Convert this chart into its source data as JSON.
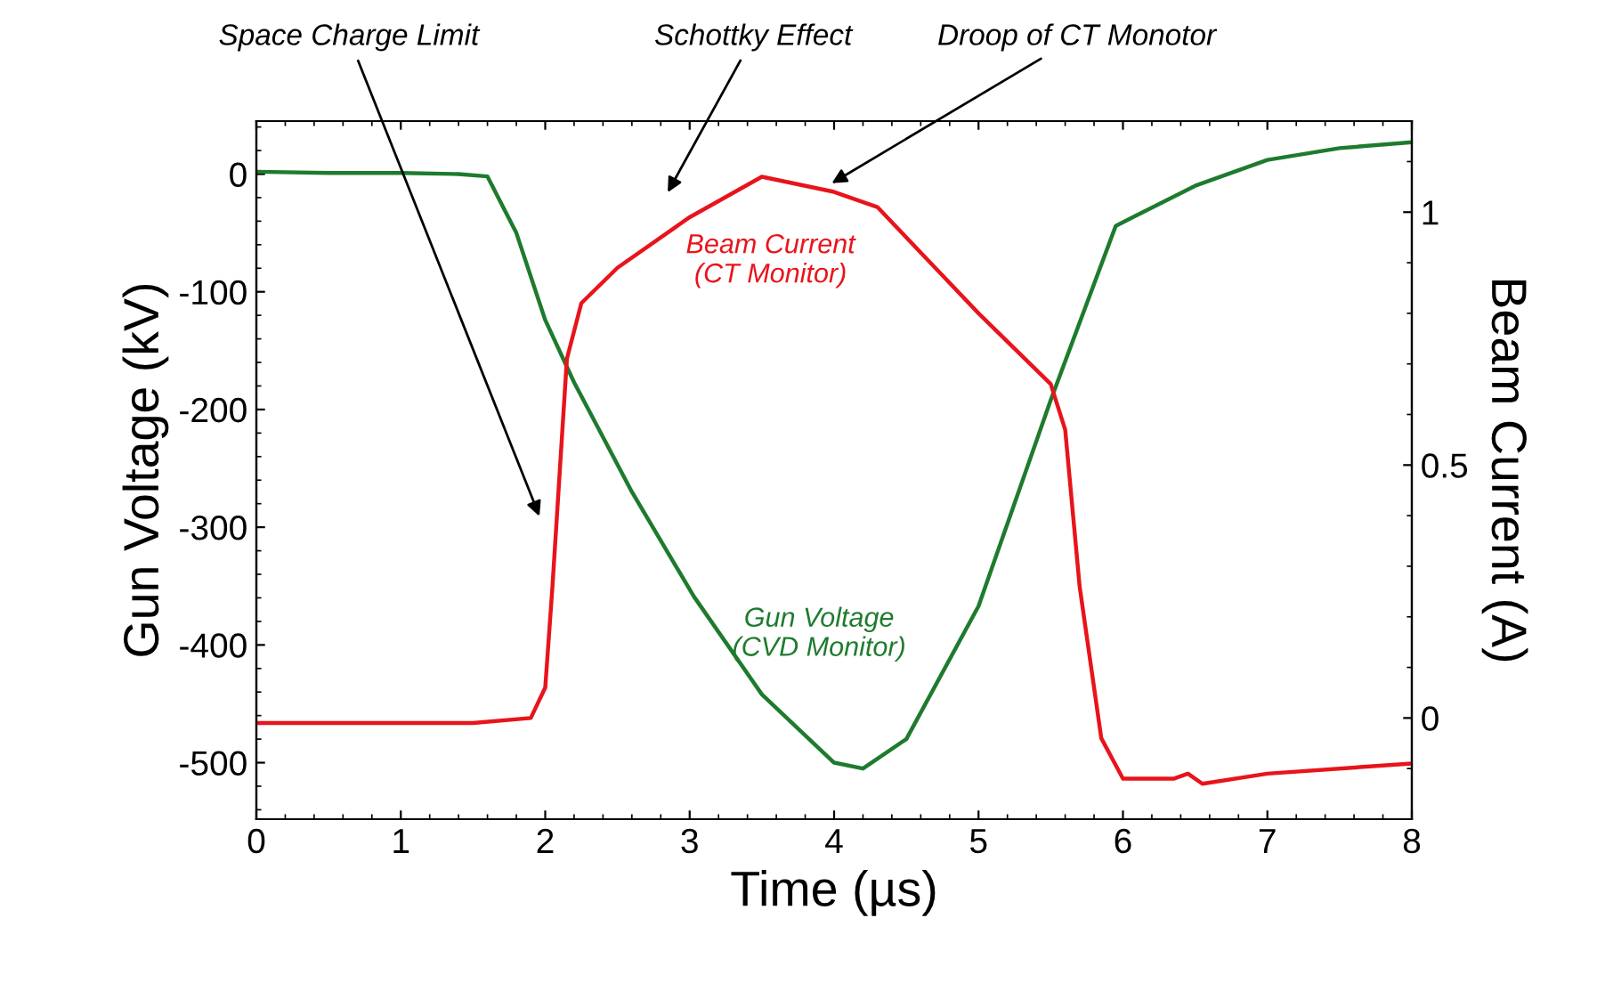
{
  "chart_data": {
    "type": "line",
    "xlabel": "Time (µs)",
    "ylabel": "Gun Voltage (kV)",
    "y2label": "Beam Current (A)",
    "xlim": [
      0,
      8
    ],
    "xticks": [
      0,
      1,
      2,
      3,
      4,
      5,
      6,
      7,
      8
    ],
    "ylim": [
      -548,
      45
    ],
    "yticks": [
      0,
      -100,
      -200,
      -300,
      -400,
      -500
    ],
    "y2lim": [
      -0.2,
      1.18
    ],
    "y2ticks": [
      0,
      0.5,
      1
    ],
    "grid": false,
    "legend": false,
    "series": [
      {
        "name": "Gun Voltage\n(CVD Monitor)",
        "color": "#1e7b2e",
        "x": [
          0,
          0.5,
          1,
          1.4,
          1.6,
          1.8,
          2.0,
          2.2,
          2.6,
          3.03,
          3.5,
          4.0,
          4.2,
          4.5,
          5.0,
          5.5,
          5.95,
          6.5,
          7.0,
          7.5,
          8.0
        ],
        "values": [
          2,
          1,
          1,
          0,
          -2,
          -50,
          -124,
          -177,
          -270,
          -359,
          -442,
          -500,
          -505,
          -480,
          -367,
          -192,
          -44,
          -10,
          12,
          22,
          27
        ]
      },
      {
        "name": "Beam Current\n(CT Monitor)",
        "color": "#e8141b",
        "axis": "y2",
        "x": [
          0,
          0.5,
          1,
          1.5,
          1.9,
          2.0,
          2.05,
          2.15,
          2.25,
          2.5,
          3.0,
          3.5,
          4.0,
          4.3,
          4.7,
          5.0,
          5.5,
          5.6,
          5.7,
          5.85,
          6.0,
          6.35,
          6.45,
          6.55,
          7.0,
          8.0
        ],
        "values": [
          -0.01,
          -0.01,
          -0.01,
          -0.01,
          0.0,
          0.06,
          0.26,
          0.71,
          0.82,
          0.89,
          0.99,
          1.07,
          1.04,
          1.01,
          0.89,
          0.8,
          0.66,
          0.57,
          0.26,
          -0.04,
          -0.12,
          -0.12,
          -0.11,
          -0.13,
          -0.11,
          -0.09
        ]
      }
    ],
    "annotations": [
      "Space Charge Limit",
      "Schottky Effect",
      "Droop of CT Monotor"
    ]
  }
}
